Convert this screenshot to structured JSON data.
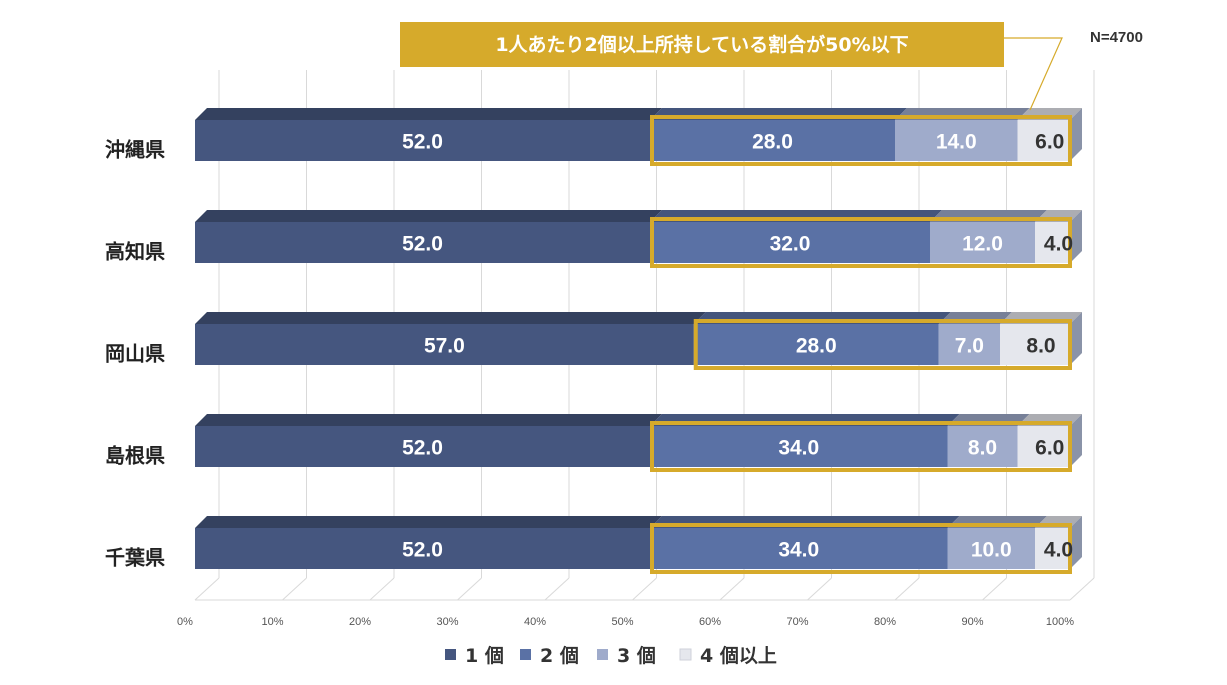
{
  "chart_data": {
    "type": "bar",
    "orientation": "horizontal",
    "stacked": "percent",
    "categories": [
      "沖縄県",
      "高知県",
      "岡山県",
      "島根県",
      "千葉県"
    ],
    "series": [
      {
        "name": "1個",
        "legend_label": "1 個",
        "color": "#45567f",
        "values": [
          52.0,
          52.0,
          57.0,
          52.0,
          52.0
        ]
      },
      {
        "name": "2個",
        "legend_label": "2 個",
        "color": "#5a71a5",
        "values": [
          28.0,
          32.0,
          28.0,
          34.0,
          34.0
        ]
      },
      {
        "name": "3個",
        "legend_label": "3 個",
        "color": "#9fabcb",
        "values": [
          14.0,
          12.0,
          7.0,
          8.0,
          10.0
        ]
      },
      {
        "name": "4個以上",
        "legend_label": "4 個以上",
        "color": "#e5e7ed",
        "values": [
          6.0,
          4.0,
          8.0,
          6.0,
          4.0
        ]
      }
    ],
    "value_labels": [
      [
        "52.0",
        "28.0",
        "14.0",
        "6.0"
      ],
      [
        "52.0",
        "32.0",
        "12.0",
        "4.0"
      ],
      [
        "57.0",
        "28.0",
        "7.0",
        "8.0"
      ],
      [
        "52.0",
        "34.0",
        "8.0",
        "6.0"
      ],
      [
        "52.0",
        "34.0",
        "10.0",
        "4.0"
      ]
    ],
    "xlim": [
      0,
      100
    ],
    "x_ticks": [
      "0%",
      "10%",
      "20%",
      "30%",
      "40%",
      "50%",
      "60%",
      "70%",
      "80%",
      "90%",
      "100%"
    ],
    "annotation": "1人あたり2個以上所持している割合が50%以下",
    "annotation_color": "#d6aa2b",
    "note": "N=4700",
    "legend_position": "bottom"
  }
}
